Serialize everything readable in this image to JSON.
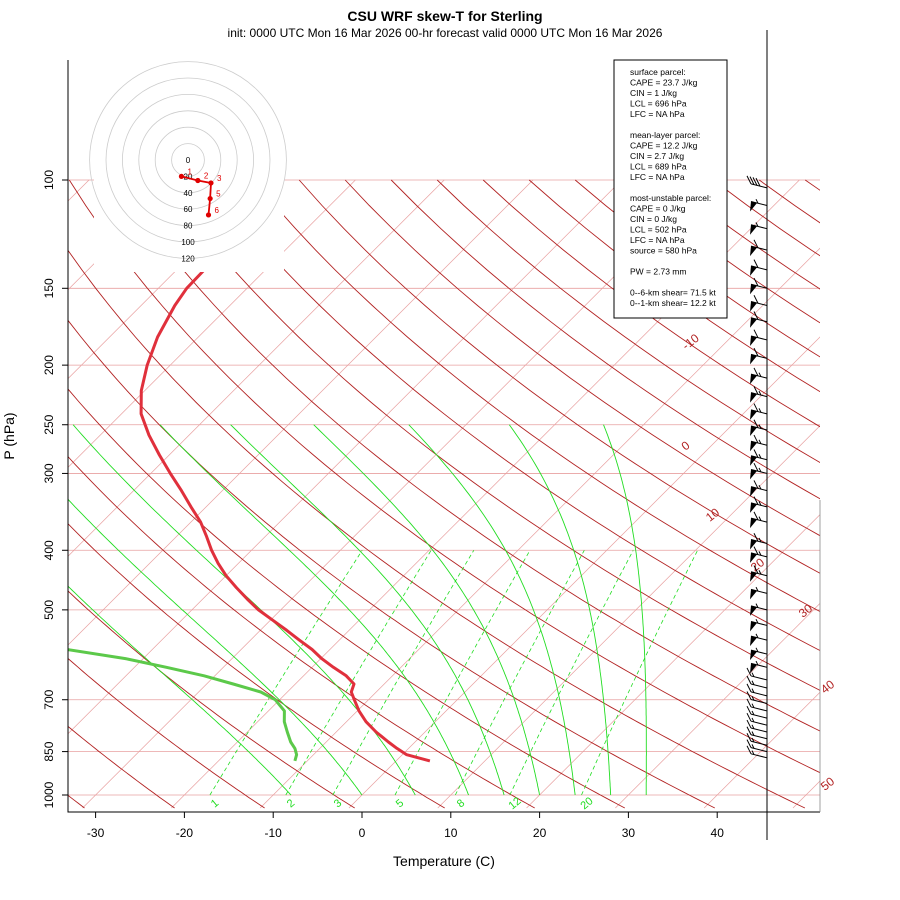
{
  "title": "CSU WRF skew-T for Sterling",
  "subtitle": "init: 0000 UTC Mon 16 Mar 2026     00-hr forecast valid 0000 UTC Mon 16 Mar 2026",
  "info_lines": [
    "surface parcel:",
    "CAPE = 23.7 J/kg",
    "CIN = 1 J/kg",
    "LCL = 696 hPa",
    "LFC = NA hPa",
    "",
    "mean-layer parcel:",
    "CAPE = 12.2 J/kg",
    "CIN = 2.7 J/kg",
    "LCL = 689 hPa",
    "LFC = NA hPa",
    "",
    "most-unstable parcel:",
    "CAPE = 0 J/kg",
    "CIN = 0 J/kg",
    "LCL = 502 hPa",
    "LFC = NA hPa",
    "source = 580 hPa",
    "",
    "PW =  2.73 mm",
    "",
    "0--6-km shear= 71.5 kt",
    "0--1-km shear= 12.2 kt"
  ],
  "colors": {
    "temperature": "#e0303c",
    "dewpoint": "#5cc94a",
    "dry_adiabat": "#b22222",
    "moist_adiabat": "#22dd22",
    "mixing_ratio": "#22dd22",
    "isobar": "#e8a0a0",
    "isotherm": "#e8a0a0",
    "hodograph": "#e00000",
    "barb": "#000000"
  },
  "chart_data": {
    "type": "skew-t",
    "title": "CSU WRF skew-T for Sterling",
    "subtitle": "init: 0000 UTC Mon 16 Mar 2026     00-hr forecast valid 0000 UTC Mon 16 Mar 2026",
    "xlabel": "Temperature (C)",
    "ylabel": "P (hPa)",
    "x_ticks": [
      -30,
      -20,
      -10,
      0,
      10,
      20,
      30,
      40
    ],
    "y_ticks": [
      100,
      150,
      200,
      250,
      300,
      400,
      500,
      700,
      850,
      1000
    ],
    "xlim": [
      -33,
      48
    ],
    "ylim": [
      1050,
      100
    ],
    "y_scale": "log",
    "temperature_profile": {
      "p": [
        880,
        860,
        840,
        820,
        790,
        760,
        730,
        700,
        680,
        660,
        640,
        620,
        600,
        580,
        560,
        540,
        520,
        500,
        480,
        460,
        440,
        420,
        400,
        380,
        360,
        340,
        320,
        300,
        280,
        260,
        240,
        220,
        200,
        180,
        160,
        150,
        140,
        130,
        120,
        110
      ],
      "t": [
        3.8,
        0.5,
        -1.3,
        -3.0,
        -5.5,
        -7.8,
        -9.8,
        -11.6,
        -12.8,
        -13.4,
        -15.2,
        -17.6,
        -19.9,
        -22.0,
        -24.5,
        -27.0,
        -29.7,
        -32.5,
        -35.0,
        -37.5,
        -40.0,
        -42.3,
        -44.5,
        -46.6,
        -48.9,
        -51.7,
        -54.6,
        -57.8,
        -61.1,
        -64.5,
        -67.8,
        -70.4,
        -72.6,
        -74.6,
        -76.2,
        -76.8,
        -76.9,
        -76.7,
        -76.6,
        -76.3
      ]
    },
    "dewpoint_profile": {
      "p": [
        880,
        860,
        840,
        820,
        790,
        760,
        730,
        700,
        680,
        660,
        640,
        620,
        600,
        580,
        560,
        540,
        520,
        500,
        480,
        460,
        440,
        420,
        400,
        380,
        360,
        340,
        320,
        300,
        280,
        260,
        240,
        220,
        200,
        180,
        170
      ],
      "td": [
        -11.4,
        -11.9,
        -12.8,
        -14.0,
        -15.5,
        -17.0,
        -18.2,
        -20.5,
        -23.0,
        -27.0,
        -31.2,
        -36.4,
        -42.0,
        -49.6,
        -58.0,
        -66.3,
        -74.5,
        -80.9,
        -82.9,
        -83.4,
        -80.5,
        -82.4,
        -85.2,
        -89.4,
        -92.9,
        -94.2,
        -97.2,
        -100.3,
        -103.6,
        -106.9,
        -110.0,
        -113.5,
        -116.0,
        -115.6,
        -115.2
      ]
    },
    "dry_adiabat_labels": [
      "-10",
      "0",
      "10",
      "20",
      "30",
      "40",
      "50"
    ],
    "mixing_ratio_labels": [
      "1",
      "2",
      "3",
      "5",
      "8",
      "12",
      "20"
    ],
    "wind_barbs": [
      {
        "p": 870,
        "speed": 15
      },
      {
        "p": 850,
        "speed": 15
      },
      {
        "p": 830,
        "speed": 15
      },
      {
        "p": 810,
        "speed": 15
      },
      {
        "p": 790,
        "speed": 15
      },
      {
        "p": 770,
        "speed": 15
      },
      {
        "p": 750,
        "speed": 15
      },
      {
        "p": 730,
        "speed": 15
      },
      {
        "p": 710,
        "speed": 15
      },
      {
        "p": 690,
        "speed": 15
      },
      {
        "p": 670,
        "speed": 15
      },
      {
        "p": 650,
        "speed": 15
      },
      {
        "p": 620,
        "speed": 55
      },
      {
        "p": 590,
        "speed": 55
      },
      {
        "p": 560,
        "speed": 55
      },
      {
        "p": 530,
        "speed": 55
      },
      {
        "p": 500,
        "speed": 55
      },
      {
        "p": 470,
        "speed": 55
      },
      {
        "p": 440,
        "speed": 65
      },
      {
        "p": 410,
        "speed": 65
      },
      {
        "p": 390,
        "speed": 65
      },
      {
        "p": 360,
        "speed": 65
      },
      {
        "p": 340,
        "speed": 65
      },
      {
        "p": 320,
        "speed": 65
      },
      {
        "p": 300,
        "speed": 65
      },
      {
        "p": 285,
        "speed": 65
      },
      {
        "p": 270,
        "speed": 65
      },
      {
        "p": 255,
        "speed": 65
      },
      {
        "p": 240,
        "speed": 65
      },
      {
        "p": 225,
        "speed": 65
      },
      {
        "p": 210,
        "speed": 65
      },
      {
        "p": 195,
        "speed": 60
      },
      {
        "p": 182,
        "speed": 60
      },
      {
        "p": 170,
        "speed": 60
      },
      {
        "p": 160,
        "speed": 60
      },
      {
        "p": 150,
        "speed": 60
      },
      {
        "p": 140,
        "speed": 60
      },
      {
        "p": 130,
        "speed": 60
      },
      {
        "p": 120,
        "speed": 55
      },
      {
        "p": 110,
        "speed": 55
      },
      {
        "p": 103,
        "speed": 40
      }
    ],
    "hodograph": {
      "ring_labels": [
        "0",
        "20",
        "40",
        "60",
        "80",
        "100",
        "120"
      ],
      "points": [
        {
          "label": "1",
          "u": -8,
          "v": -20
        },
        {
          "label": "2",
          "u": 12,
          "v": -25
        },
        {
          "label": "3",
          "u": 28,
          "v": -28
        },
        {
          "label": "5",
          "u": 27,
          "v": -47
        },
        {
          "label": "6",
          "u": 25,
          "v": -67
        }
      ]
    }
  }
}
